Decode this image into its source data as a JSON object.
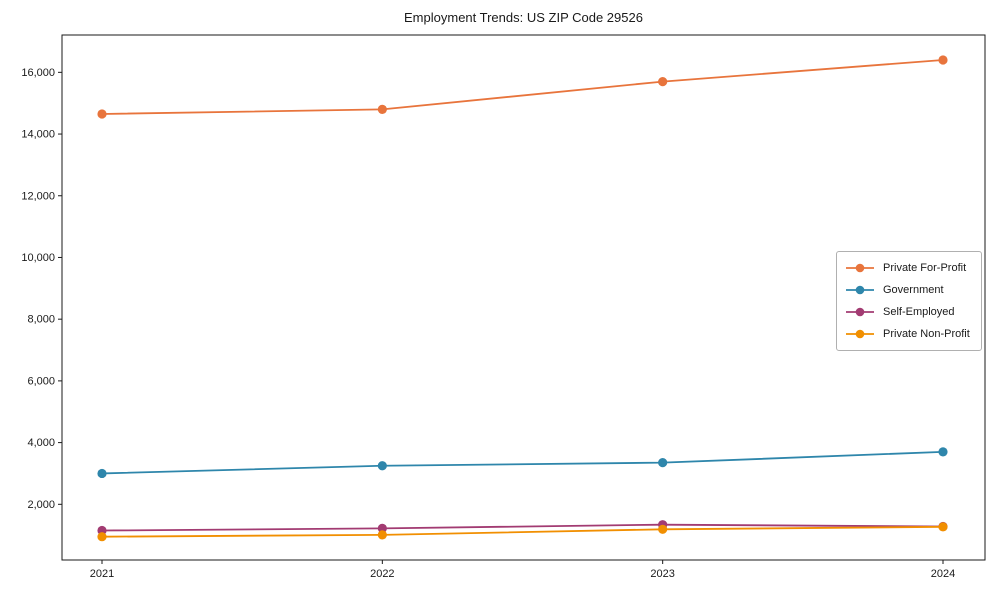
{
  "chart_data": {
    "type": "line",
    "title": "Employment Trends: US ZIP Code 29526",
    "categories": [
      "2021",
      "2022",
      "2023",
      "2024"
    ],
    "series": [
      {
        "name": "Private For-Profit",
        "color": "#e8743c",
        "values": [
          14650,
          14800,
          15700,
          16400
        ]
      },
      {
        "name": "Government",
        "color": "#2e86ab",
        "values": [
          3000,
          3250,
          3350,
          3700
        ]
      },
      {
        "name": "Self-Employed",
        "color": "#a23b72",
        "values": [
          1150,
          1220,
          1340,
          1280
        ]
      },
      {
        "name": "Private Non-Profit",
        "color": "#f18f01",
        "values": [
          950,
          1010,
          1190,
          1270
        ]
      }
    ],
    "xlabel": "",
    "ylabel": "",
    "ylim": [
      195,
      17210
    ],
    "yticks": [
      2000,
      4000,
      6000,
      8000,
      10000,
      12000,
      14000,
      16000
    ],
    "grid": false,
    "legend_position": "center-right",
    "axis_color": "#1a1a1a",
    "text_color": "#1a1a1a",
    "marker": "circle",
    "background": "#ffffff"
  }
}
